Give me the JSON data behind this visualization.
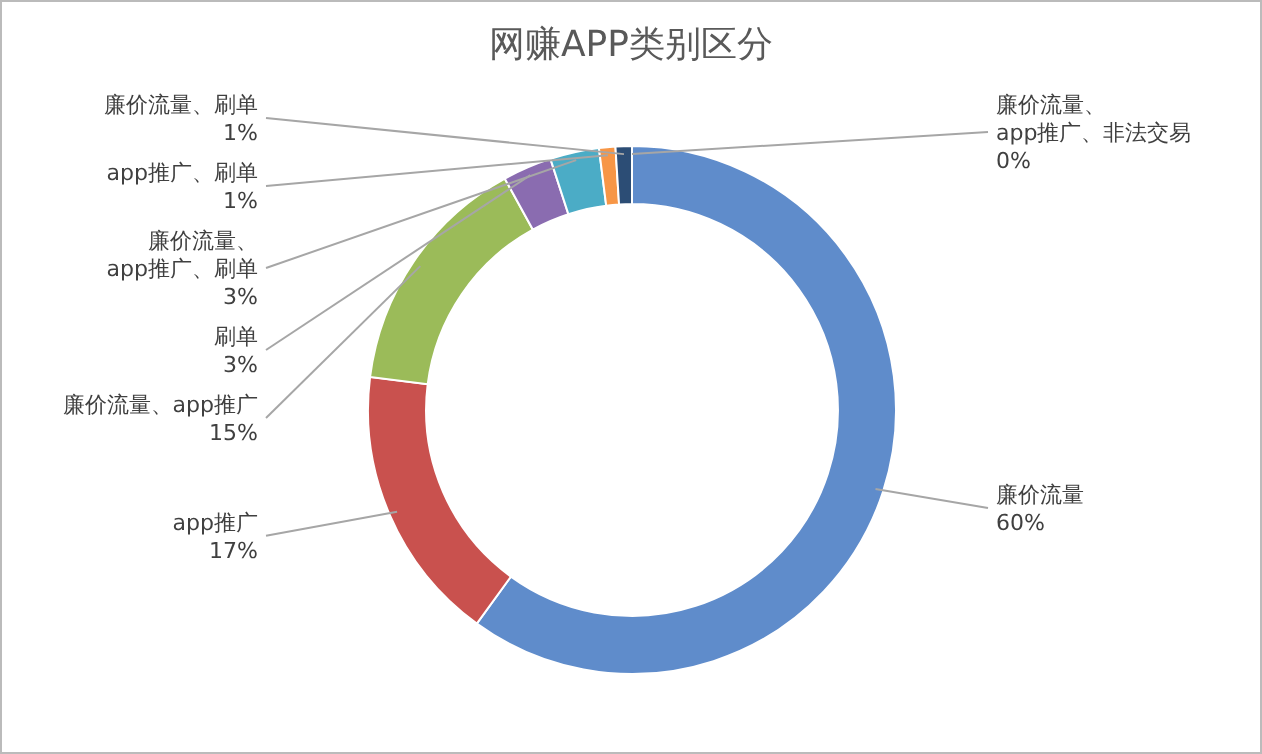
{
  "chart_data": {
    "type": "donut",
    "title": "网赚APP类别区分",
    "categories": [
      "廉价流量",
      "app推广",
      "廉价流量、app推广",
      "刷单",
      "廉价流量、app推广、刷单",
      "app推广、刷单",
      "廉价流量、刷单",
      "廉价流量、app推广、非法交易"
    ],
    "values": [
      60,
      17,
      15,
      3,
      3,
      1,
      1,
      0
    ],
    "value_labels": [
      "60%",
      "17%",
      "15%",
      "3%",
      "3%",
      "1%",
      "1%",
      "0%"
    ],
    "colors": [
      "#5f8ccb",
      "#c9514e",
      "#9bbb59",
      "#8a6cb0",
      "#4bacc6",
      "#f79646",
      "#2c4d75",
      "#772c2a"
    ]
  }
}
